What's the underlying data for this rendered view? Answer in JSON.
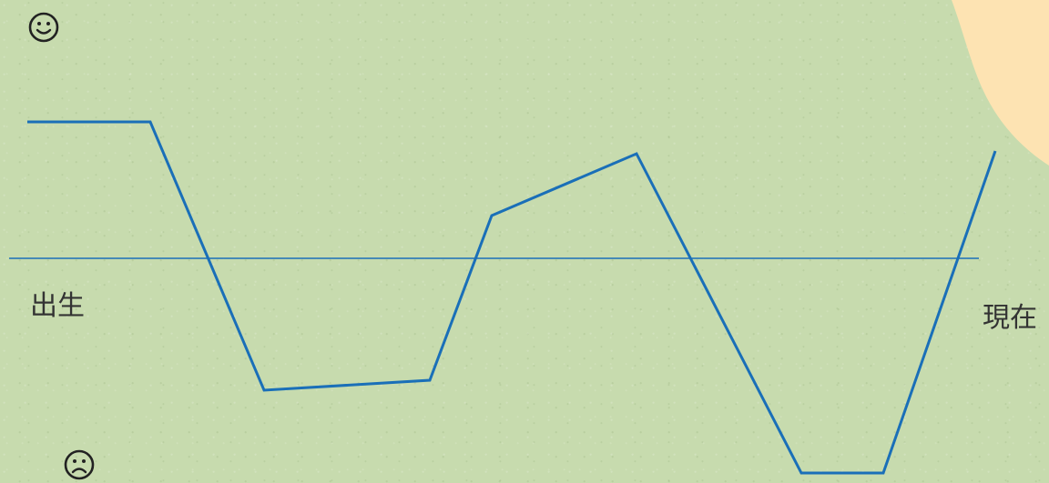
{
  "labels": {
    "start": "出生",
    "end": "現在"
  },
  "icons": {
    "top": "smiley-icon",
    "bottom": "frown-icon"
  },
  "colors": {
    "background": "#c7dbae",
    "blob": "#fde3b2",
    "line": "#1a6fb8",
    "text": "#333333"
  }
}
